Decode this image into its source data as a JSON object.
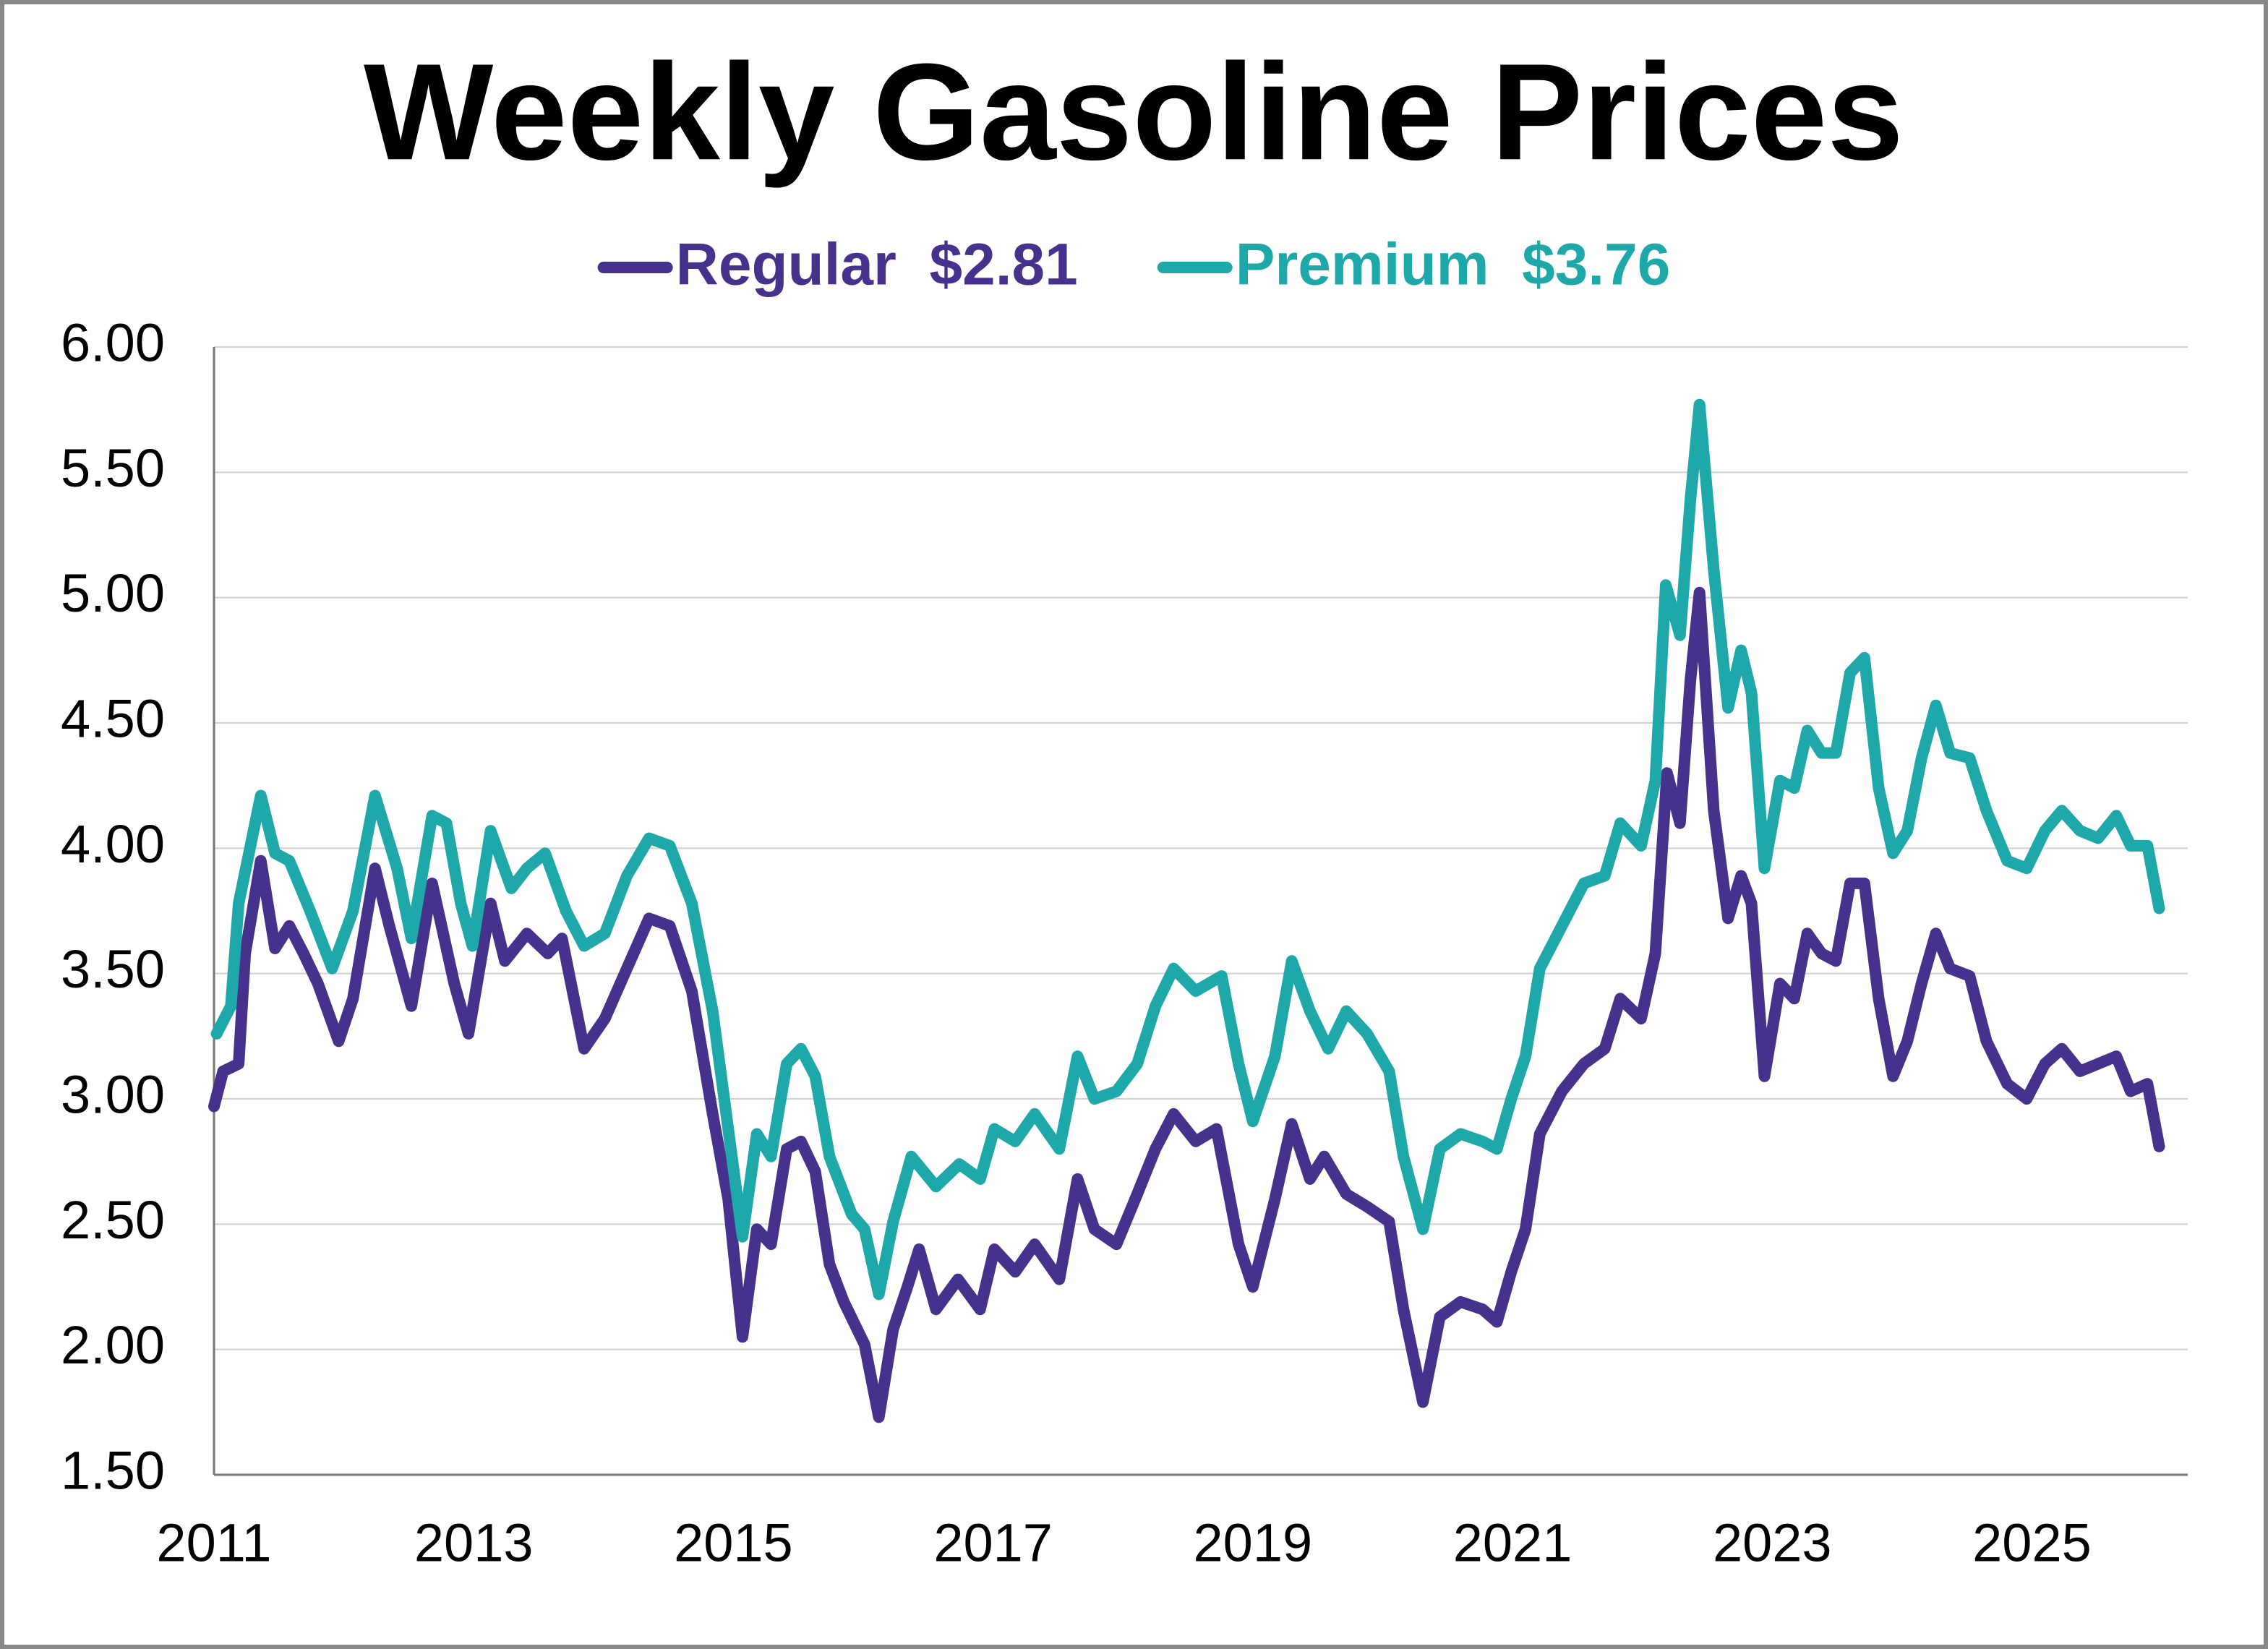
{
  "chart_data": {
    "type": "line",
    "title": "Weekly Gasoline Prices",
    "series": [
      {
        "name": "Regular  $2.81",
        "color": "#46328c",
        "x": [
          2011.0,
          2011.07,
          2011.19,
          2011.24,
          2011.36,
          2011.47,
          2011.58,
          2011.69,
          2011.8,
          2011.96,
          2012.07,
          2012.24,
          2012.35,
          2012.52,
          2012.68,
          2012.85,
          2012.96,
          2013.13,
          2013.24,
          2013.41,
          2013.57,
          2013.68,
          2013.85,
          2014.01,
          2014.18,
          2014.35,
          2014.51,
          2014.68,
          2014.84,
          2014.96,
          2015.07,
          2015.18,
          2015.29,
          2015.41,
          2015.52,
          2015.63,
          2015.74,
          2015.85,
          2016.01,
          2016.12,
          2016.23,
          2016.34,
          2016.43,
          2016.56,
          2016.73,
          2016.9,
          2017.01,
          2017.17,
          2017.32,
          2017.51,
          2017.65,
          2017.78,
          2017.95,
          2018.11,
          2018.25,
          2018.39,
          2018.56,
          2018.72,
          2018.89,
          2019.0,
          2019.17,
          2019.3,
          2019.44,
          2019.55,
          2019.72,
          2019.88,
          2020.05,
          2020.16,
          2020.31,
          2020.44,
          2020.6,
          2020.77,
          2020.88,
          2020.99,
          2021.1,
          2021.21,
          2021.38,
          2021.55,
          2021.71,
          2021.83,
          2021.99,
          2022.1,
          2022.19,
          2022.29,
          2022.37,
          2022.44,
          2022.55,
          2022.66,
          2022.76,
          2022.84,
          2022.94,
          2023.06,
          2023.17,
          2023.27,
          2023.38,
          2023.49,
          2023.6,
          2023.71,
          2023.82,
          2023.93,
          2024.04,
          2024.15,
          2024.26,
          2024.37,
          2024.52,
          2024.65,
          2024.81,
          2024.96,
          2025.1,
          2025.23,
          2025.37,
          2025.51,
          2025.65,
          2025.76,
          2025.89,
          2025.98
        ],
        "values": [
          2.97,
          3.11,
          3.14,
          3.58,
          3.95,
          3.6,
          3.69,
          3.58,
          3.46,
          3.23,
          3.4,
          3.92,
          3.69,
          3.37,
          3.86,
          3.46,
          3.26,
          3.78,
          3.55,
          3.66,
          3.58,
          3.64,
          3.2,
          3.32,
          3.52,
          3.72,
          3.69,
          3.43,
          2.94,
          2.6,
          2.05,
          2.48,
          2.42,
          2.8,
          2.83,
          2.71,
          2.34,
          2.19,
          2.02,
          1.73,
          2.08,
          2.25,
          2.4,
          2.16,
          2.28,
          2.16,
          2.4,
          2.31,
          2.42,
          2.28,
          2.68,
          2.48,
          2.42,
          2.62,
          2.8,
          2.94,
          2.83,
          2.88,
          2.42,
          2.25,
          2.6,
          2.9,
          2.68,
          2.77,
          2.62,
          2.57,
          2.51,
          2.16,
          1.79,
          2.13,
          2.19,
          2.16,
          2.11,
          2.31,
          2.48,
          2.86,
          3.03,
          3.14,
          3.2,
          3.4,
          3.32,
          3.58,
          4.3,
          4.1,
          4.67,
          5.02,
          4.15,
          3.72,
          3.89,
          3.78,
          3.09,
          3.46,
          3.4,
          3.66,
          3.58,
          3.55,
          3.86,
          3.86,
          3.4,
          3.09,
          3.23,
          3.46,
          3.66,
          3.52,
          3.49,
          3.23,
          3.06,
          3.0,
          3.14,
          3.2,
          3.11,
          3.14,
          3.17,
          3.03,
          3.06,
          2.81
        ]
      },
      {
        "name": "Premium  $3.76",
        "color": "#1fa8aa",
        "x": [
          2011.02,
          2011.13,
          2011.19,
          2011.36,
          2011.47,
          2011.58,
          2011.74,
          2011.91,
          2012.07,
          2012.24,
          2012.41,
          2012.52,
          2012.68,
          2012.79,
          2012.9,
          2012.99,
          2013.13,
          2013.29,
          2013.41,
          2013.55,
          2013.71,
          2013.85,
          2014.01,
          2014.18,
          2014.35,
          2014.51,
          2014.68,
          2014.84,
          2014.96,
          2015.07,
          2015.18,
          2015.29,
          2015.41,
          2015.52,
          2015.63,
          2015.74,
          2015.91,
          2016.01,
          2016.12,
          2016.23,
          2016.37,
          2016.56,
          2016.74,
          2016.9,
          2017.01,
          2017.17,
          2017.32,
          2017.51,
          2017.65,
          2017.78,
          2017.95,
          2018.11,
          2018.25,
          2018.39,
          2018.56,
          2018.76,
          2018.89,
          2019.0,
          2019.17,
          2019.3,
          2019.44,
          2019.58,
          2019.72,
          2019.88,
          2020.05,
          2020.16,
          2020.31,
          2020.44,
          2020.6,
          2020.77,
          2020.88,
          2020.99,
          2021.1,
          2021.21,
          2021.38,
          2021.55,
          2021.71,
          2021.83,
          2021.99,
          2022.1,
          2022.18,
          2022.29,
          2022.37,
          2022.44,
          2022.55,
          2022.66,
          2022.76,
          2022.84,
          2022.94,
          2023.06,
          2023.17,
          2023.27,
          2023.38,
          2023.49,
          2023.6,
          2023.71,
          2023.82,
          2023.93,
          2024.04,
          2024.15,
          2024.26,
          2024.37,
          2024.52,
          2024.65,
          2024.81,
          2024.96,
          2025.1,
          2025.23,
          2025.37,
          2025.51,
          2025.65,
          2025.76,
          2025.89,
          2025.98
        ],
        "values": [
          3.26,
          3.37,
          3.78,
          4.21,
          3.98,
          3.95,
          3.75,
          3.52,
          3.75,
          4.21,
          3.92,
          3.64,
          4.13,
          4.1,
          3.78,
          3.61,
          4.07,
          3.84,
          3.92,
          3.98,
          3.75,
          3.61,
          3.66,
          3.89,
          4.04,
          4.01,
          3.78,
          3.35,
          2.88,
          2.45,
          2.86,
          2.77,
          3.14,
          3.2,
          3.09,
          2.77,
          2.54,
          2.48,
          2.22,
          2.51,
          2.77,
          2.65,
          2.74,
          2.68,
          2.88,
          2.83,
          2.94,
          2.8,
          3.17,
          3.0,
          3.03,
          3.14,
          3.37,
          3.52,
          3.43,
          3.49,
          3.14,
          2.91,
          3.17,
          3.55,
          3.35,
          3.2,
          3.35,
          3.26,
          3.11,
          2.77,
          2.48,
          2.8,
          2.86,
          2.83,
          2.8,
          3.0,
          3.17,
          3.52,
          3.69,
          3.86,
          3.89,
          4.1,
          4.01,
          4.27,
          5.05,
          4.85,
          5.39,
          5.77,
          5.11,
          4.56,
          4.79,
          4.62,
          3.92,
          4.27,
          4.24,
          4.47,
          4.38,
          4.38,
          4.7,
          4.76,
          4.24,
          3.98,
          4.07,
          4.36,
          4.57,
          4.38,
          4.36,
          4.15,
          3.95,
          3.92,
          4.07,
          4.15,
          4.07,
          4.04,
          4.13,
          4.01,
          4.01,
          3.76
        ]
      }
    ],
    "xlim": [
      2011,
      2026.2
    ],
    "xticks": [
      2011,
      2013,
      2015,
      2017,
      2019,
      2021,
      2023,
      2025
    ],
    "ylim": [
      1.5,
      6
    ],
    "yticks": [
      {
        "value": 1.5,
        "label": "1.50"
      },
      {
        "value": 2,
        "label": "2.00"
      },
      {
        "value": 2.5,
        "label": "2.50"
      },
      {
        "value": 3,
        "label": "3.00"
      },
      {
        "value": 3.5,
        "label": "3.50"
      },
      {
        "value": 4,
        "label": "4.00"
      },
      {
        "value": 4.5,
        "label": "4.50"
      },
      {
        "value": 5,
        "label": "5.00"
      },
      {
        "value": 5.5,
        "label": "5.50"
      },
      {
        "value": 6,
        "label": "6.00"
      }
    ],
    "grid": true,
    "legend": "top"
  }
}
